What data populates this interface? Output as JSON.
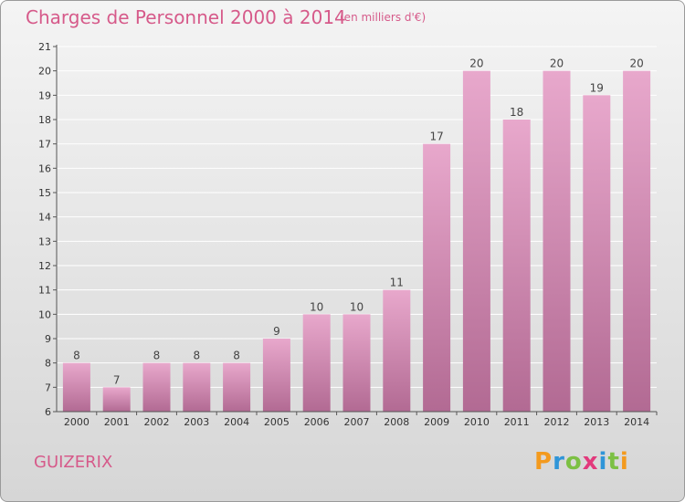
{
  "header": {
    "title": "Charges de Personnel 2000 à 2014",
    "subtitle": "(en milliers d'€)"
  },
  "commune": "GUIZERIX",
  "logo": {
    "letters": [
      {
        "char": "P",
        "color": "#f39a1e"
      },
      {
        "char": "r",
        "color": "#2f95d8"
      },
      {
        "char": "o",
        "color": "#7cc043"
      },
      {
        "char": "x",
        "color": "#e23a7c"
      },
      {
        "char": "i",
        "color": "#2f95d8"
      },
      {
        "char": "t",
        "color": "#7cc043"
      },
      {
        "char": "i",
        "color": "#f39a1e"
      }
    ]
  },
  "chart_data": {
    "type": "bar",
    "categories": [
      "2000",
      "2001",
      "2002",
      "2003",
      "2004",
      "2005",
      "2006",
      "2007",
      "2008",
      "2009",
      "2010",
      "2011",
      "2012",
      "2013",
      "2014"
    ],
    "values": [
      8,
      7,
      8,
      8,
      8,
      9,
      10,
      10,
      11,
      17,
      20,
      18,
      20,
      19,
      20
    ],
    "ylim": [
      6,
      21
    ],
    "yticks": [
      6,
      7,
      8,
      9,
      10,
      11,
      12,
      13,
      14,
      15,
      16,
      17,
      18,
      19,
      20,
      21
    ],
    "grid": true,
    "bar_color_top": "#e8a8cc",
    "bar_color_bottom": "#b26a93"
  }
}
